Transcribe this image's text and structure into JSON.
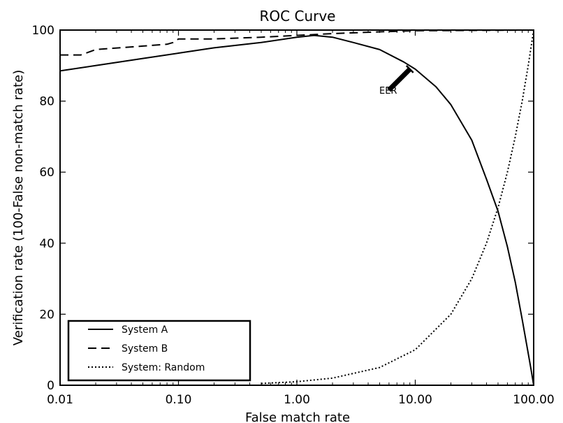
{
  "chart_data": {
    "type": "line",
    "title": "ROC Curve",
    "xlabel": "False match rate",
    "ylabel": "Verification rate (100-False non-match rate)",
    "xscale": "log",
    "xlim": [
      0.01,
      100
    ],
    "ylim": [
      0,
      100
    ],
    "xticks": [
      0.01,
      0.1,
      1,
      10,
      100
    ],
    "xtick_labels": [
      "0.01",
      "0.10",
      "1.00",
      "10.00",
      "100.00"
    ],
    "yticks": [
      0,
      20,
      40,
      60,
      80,
      100
    ],
    "ytick_labels": [
      "0",
      "20",
      "40",
      "60",
      "80",
      "100"
    ],
    "legend_position": "lower-left",
    "series": [
      {
        "name": "System A",
        "style": "solid",
        "x": [
          0.01,
          0.02,
          0.05,
          0.1,
          0.2,
          0.5,
          1,
          1.4,
          2,
          3,
          5,
          8,
          10,
          15,
          20,
          30,
          40,
          50,
          60,
          70,
          80,
          90,
          95,
          100
        ],
        "y": [
          88.5,
          90,
          92,
          93.5,
          95,
          96.5,
          98,
          98.5,
          98,
          96.5,
          94.5,
          91,
          89,
          84,
          79,
          69,
          58,
          49,
          39,
          29,
          18.5,
          9,
          4.5,
          0
        ]
      },
      {
        "name": "System B",
        "style": "dashed",
        "x": [
          0.01,
          0.015,
          0.02,
          0.05,
          0.08,
          0.09,
          0.1,
          0.2,
          0.5,
          1,
          2,
          5,
          10,
          100
        ],
        "y": [
          93,
          93,
          94.5,
          95.5,
          96,
          96.5,
          97.5,
          97.5,
          98,
          98.5,
          99,
          99.5,
          99.8,
          100
        ]
      },
      {
        "name": "System: Random",
        "style": "dotted",
        "x": [
          0.5,
          1,
          2,
          5,
          10,
          20,
          30,
          40,
          50,
          60,
          70,
          80,
          90,
          100
        ],
        "y": [
          0.5,
          1,
          2,
          5,
          10,
          20,
          30,
          40,
          50,
          60,
          70,
          80,
          90,
          100
        ]
      }
    ],
    "annotation": {
      "text": "EER",
      "x": 9,
      "y": 89
    }
  }
}
